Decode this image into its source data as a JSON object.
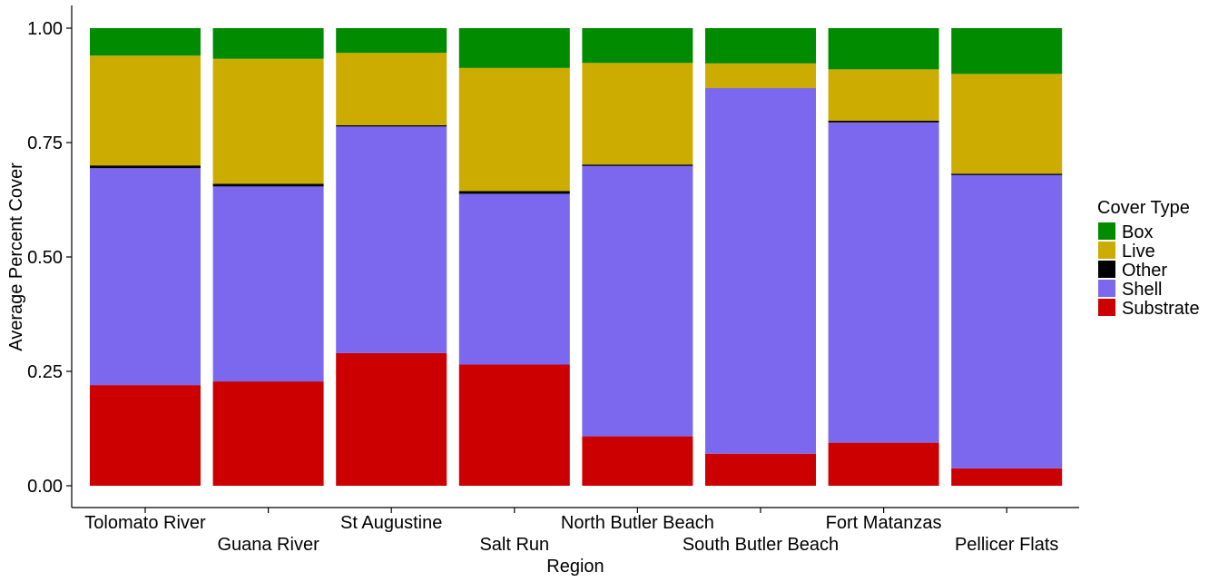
{
  "chart_data": {
    "type": "bar",
    "stacked": true,
    "xlabel": "Region",
    "ylabel": "Average Percent Cover",
    "ylim": [
      0,
      1
    ],
    "yticks": [
      0,
      0.25,
      0.5,
      0.75,
      1.0
    ],
    "ytick_labels": [
      "0.00",
      "0.25",
      "0.50",
      "0.75",
      "1.00"
    ],
    "legend_title": "Cover Type",
    "legend_position": "right",
    "grid": false,
    "categories": [
      "Tolomato River",
      "Guana River",
      "St Augustine",
      "Salt Run",
      "North Butler Beach",
      "South Butler Beach",
      "Fort Matanzas",
      "Pellicer Flats"
    ],
    "series": [
      {
        "name": "Substrate",
        "color": "#CC0000",
        "values": [
          0.22,
          0.228,
          0.29,
          0.265,
          0.108,
          0.07,
          0.094,
          0.038
        ]
      },
      {
        "name": "Shell",
        "color": "#7B68EE",
        "values": [
          0.474,
          0.426,
          0.495,
          0.373,
          0.592,
          0.799,
          0.7,
          0.642
        ]
      },
      {
        "name": "Other",
        "color": "#000000",
        "values": [
          0.006,
          0.006,
          0.003,
          0.006,
          0.002,
          0.0,
          0.004,
          0.002
        ]
      },
      {
        "name": "Live",
        "color": "#CCAC00",
        "values": [
          0.24,
          0.273,
          0.158,
          0.269,
          0.222,
          0.054,
          0.112,
          0.218
        ]
      },
      {
        "name": "Box",
        "color": "#008B00",
        "values": [
          0.06,
          0.067,
          0.054,
          0.087,
          0.076,
          0.077,
          0.09,
          0.1
        ]
      }
    ],
    "legend_order": [
      "Box",
      "Live",
      "Other",
      "Shell",
      "Substrate"
    ]
  }
}
